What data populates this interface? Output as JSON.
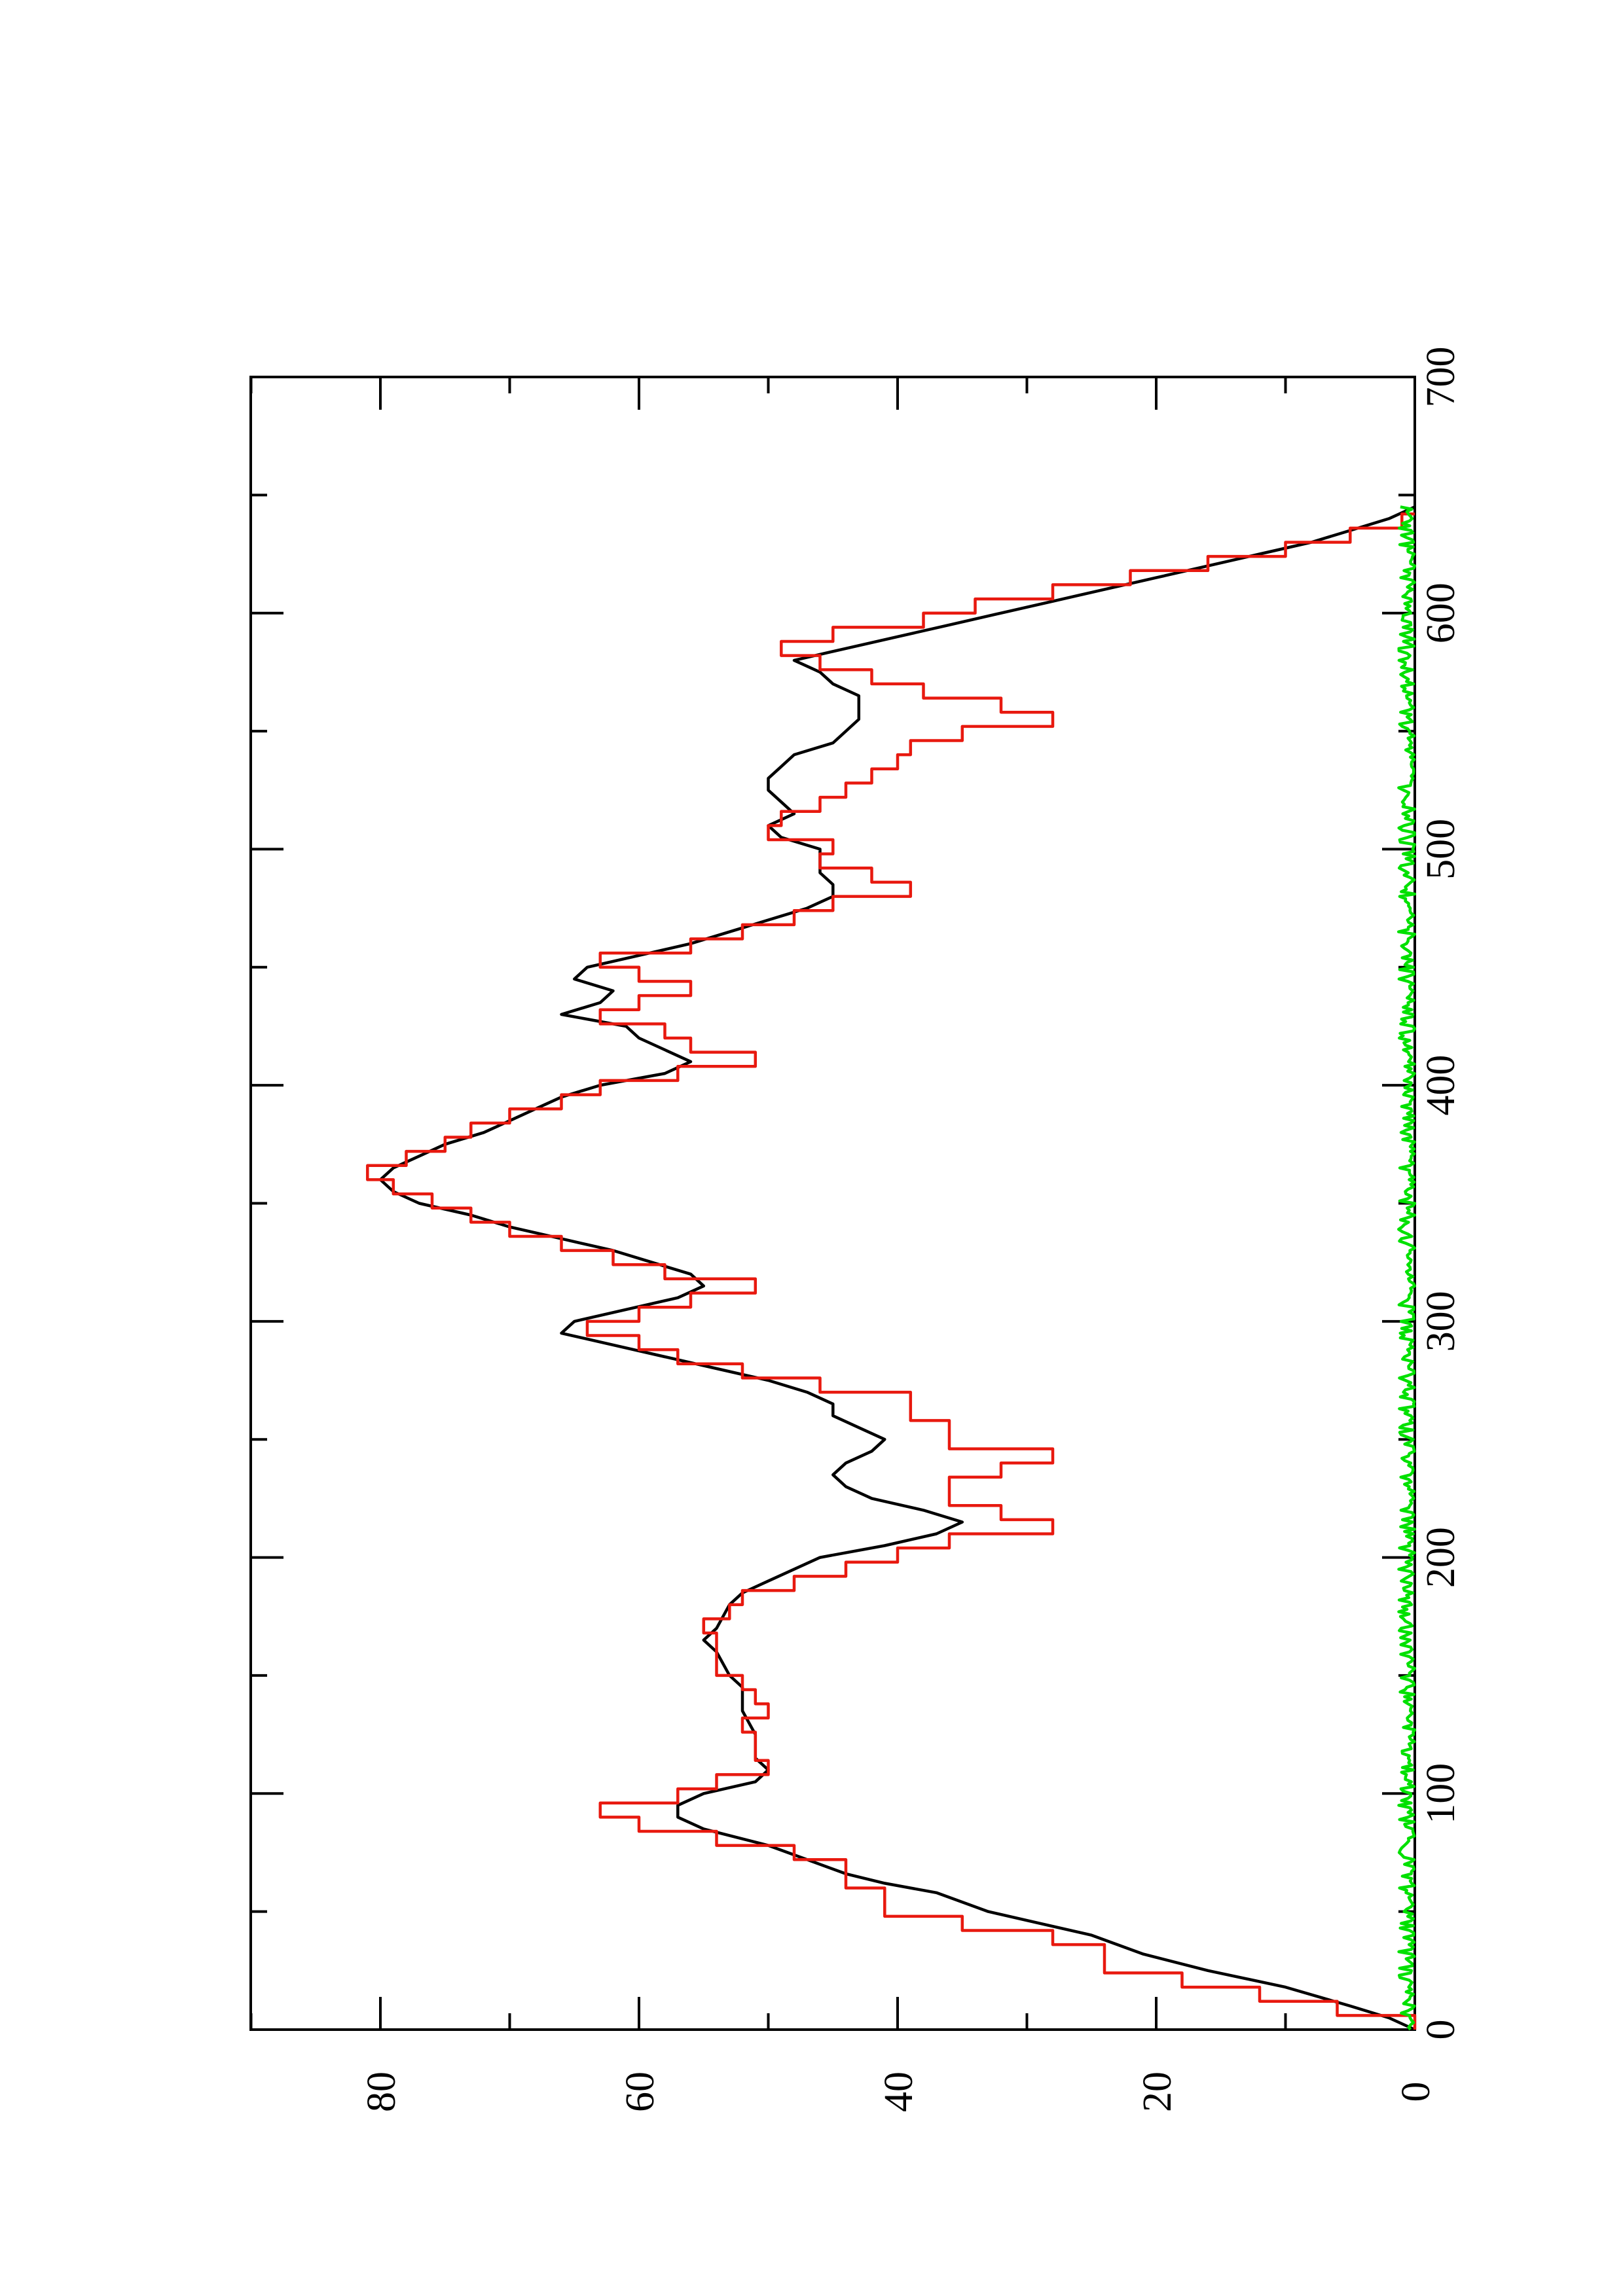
{
  "chart_data": {
    "type": "line",
    "orientation": "rotated-90-ccw",
    "xlim": [
      0,
      700
    ],
    "ylim": [
      0,
      90
    ],
    "x_ticks": [
      "0",
      "100",
      "200",
      "300",
      "400",
      "500",
      "600",
      "700"
    ],
    "y_ticks": [
      "0",
      "20",
      "40",
      "60",
      "80"
    ],
    "grid": false,
    "legend": "none",
    "series": [
      {
        "color": "#000000",
        "points": [
          [
            0,
            0
          ],
          [
            5,
            2
          ],
          [
            10,
            5
          ],
          [
            18,
            10
          ],
          [
            25,
            16
          ],
          [
            32,
            21
          ],
          [
            40,
            25
          ],
          [
            45,
            29
          ],
          [
            50,
            33
          ],
          [
            58,
            37
          ],
          [
            62,
            41
          ],
          [
            66,
            44
          ],
          [
            72,
            47
          ],
          [
            78,
            50
          ],
          [
            85,
            55
          ],
          [
            90,
            57
          ],
          [
            95,
            57
          ],
          [
            100,
            55
          ],
          [
            105,
            51
          ],
          [
            110,
            50
          ],
          [
            115,
            51
          ],
          [
            125,
            51
          ],
          [
            135,
            52
          ],
          [
            145,
            52
          ],
          [
            150,
            53
          ],
          [
            160,
            54
          ],
          [
            165,
            55
          ],
          [
            170,
            54
          ],
          [
            180,
            53
          ],
          [
            185,
            52
          ],
          [
            190,
            50
          ],
          [
            195,
            48
          ],
          [
            200,
            46
          ],
          [
            205,
            41
          ],
          [
            210,
            37
          ],
          [
            215,
            35
          ],
          [
            220,
            38
          ],
          [
            225,
            42
          ],
          [
            230,
            44
          ],
          [
            235,
            45
          ],
          [
            240,
            44
          ],
          [
            245,
            42
          ],
          [
            250,
            41
          ],
          [
            255,
            43
          ],
          [
            260,
            45
          ],
          [
            265,
            45
          ],
          [
            270,
            47
          ],
          [
            275,
            50
          ],
          [
            280,
            54
          ],
          [
            285,
            58
          ],
          [
            290,
            62
          ],
          [
            295,
            66
          ],
          [
            300,
            65
          ],
          [
            305,
            61
          ],
          [
            310,
            57
          ],
          [
            315,
            55
          ],
          [
            320,
            56
          ],
          [
            325,
            59
          ],
          [
            330,
            62
          ],
          [
            335,
            66
          ],
          [
            340,
            70
          ],
          [
            345,
            73
          ],
          [
            350,
            77
          ],
          [
            355,
            79
          ],
          [
            360,
            80
          ],
          [
            365,
            79
          ],
          [
            370,
            77
          ],
          [
            375,
            75
          ],
          [
            380,
            72
          ],
          [
            385,
            70
          ],
          [
            390,
            68
          ],
          [
            395,
            66
          ],
          [
            400,
            63
          ],
          [
            405,
            58
          ],
          [
            410,
            56
          ],
          [
            415,
            58
          ],
          [
            420,
            60
          ],
          [
            425,
            61
          ],
          [
            430,
            66
          ],
          [
            435,
            63
          ],
          [
            440,
            62
          ],
          [
            445,
            65
          ],
          [
            450,
            64
          ],
          [
            455,
            60
          ],
          [
            460,
            56
          ],
          [
            465,
            53
          ],
          [
            470,
            50
          ],
          [
            475,
            47
          ],
          [
            480,
            45
          ],
          [
            485,
            45
          ],
          [
            490,
            46
          ],
          [
            495,
            46
          ],
          [
            500,
            46
          ],
          [
            505,
            49
          ],
          [
            510,
            50
          ],
          [
            515,
            48
          ],
          [
            520,
            49
          ],
          [
            525,
            50
          ],
          [
            530,
            50
          ],
          [
            535,
            49
          ],
          [
            540,
            48
          ],
          [
            545,
            45
          ],
          [
            550,
            44
          ],
          [
            555,
            43
          ],
          [
            560,
            43
          ],
          [
            565,
            43
          ],
          [
            570,
            45
          ],
          [
            575,
            46
          ],
          [
            580,
            48
          ],
          [
            585,
            44
          ],
          [
            590,
            40
          ],
          [
            595,
            36
          ],
          [
            600,
            32
          ],
          [
            605,
            28
          ],
          [
            610,
            24
          ],
          [
            615,
            20
          ],
          [
            620,
            16
          ],
          [
            625,
            12
          ],
          [
            630,
            8
          ],
          [
            635,
            5
          ],
          [
            640,
            2
          ],
          [
            645,
            0
          ]
        ]
      },
      {
        "color": "#e8190f",
        "points": [
          [
            0,
            0
          ],
          [
            6,
            0
          ],
          [
            6,
            6
          ],
          [
            12,
            6
          ],
          [
            12,
            12
          ],
          [
            18,
            12
          ],
          [
            18,
            18
          ],
          [
            24,
            18
          ],
          [
            24,
            24
          ],
          [
            36,
            24
          ],
          [
            36,
            28
          ],
          [
            42,
            28
          ],
          [
            42,
            35
          ],
          [
            48,
            35
          ],
          [
            48,
            41
          ],
          [
            60,
            41
          ],
          [
            60,
            44
          ],
          [
            72,
            44
          ],
          [
            72,
            48
          ],
          [
            78,
            48
          ],
          [
            78,
            54
          ],
          [
            84,
            54
          ],
          [
            84,
            60
          ],
          [
            90,
            60
          ],
          [
            90,
            63
          ],
          [
            96,
            63
          ],
          [
            96,
            57
          ],
          [
            102,
            57
          ],
          [
            102,
            54
          ],
          [
            108,
            54
          ],
          [
            108,
            50
          ],
          [
            114,
            50
          ],
          [
            114,
            51
          ],
          [
            126,
            51
          ],
          [
            126,
            52
          ],
          [
            132,
            52
          ],
          [
            132,
            50
          ],
          [
            138,
            50
          ],
          [
            138,
            51
          ],
          [
            144,
            51
          ],
          [
            144,
            52
          ],
          [
            150,
            52
          ],
          [
            150,
            54
          ],
          [
            168,
            54
          ],
          [
            168,
            55
          ],
          [
            174,
            55
          ],
          [
            174,
            53
          ],
          [
            180,
            53
          ],
          [
            180,
            52
          ],
          [
            186,
            52
          ],
          [
            186,
            48
          ],
          [
            192,
            48
          ],
          [
            192,
            44
          ],
          [
            198,
            44
          ],
          [
            198,
            40
          ],
          [
            204,
            40
          ],
          [
            204,
            36
          ],
          [
            210,
            36
          ],
          [
            210,
            28
          ],
          [
            216,
            28
          ],
          [
            216,
            32
          ],
          [
            222,
            32
          ],
          [
            222,
            36
          ],
          [
            234,
            36
          ],
          [
            234,
            32
          ],
          [
            240,
            32
          ],
          [
            240,
            28
          ],
          [
            246,
            28
          ],
          [
            246,
            36
          ],
          [
            258,
            36
          ],
          [
            258,
            39
          ],
          [
            270,
            39
          ],
          [
            270,
            46
          ],
          [
            276,
            46
          ],
          [
            276,
            52
          ],
          [
            282,
            52
          ],
          [
            282,
            57
          ],
          [
            288,
            57
          ],
          [
            288,
            60
          ],
          [
            294,
            60
          ],
          [
            294,
            64
          ],
          [
            300,
            64
          ],
          [
            300,
            60
          ],
          [
            306,
            60
          ],
          [
            306,
            56
          ],
          [
            312,
            56
          ],
          [
            312,
            51
          ],
          [
            318,
            51
          ],
          [
            318,
            58
          ],
          [
            324,
            58
          ],
          [
            324,
            62
          ],
          [
            330,
            62
          ],
          [
            330,
            66
          ],
          [
            336,
            66
          ],
          [
            336,
            70
          ],
          [
            342,
            70
          ],
          [
            342,
            73
          ],
          [
            348,
            73
          ],
          [
            348,
            76
          ],
          [
            354,
            76
          ],
          [
            354,
            79
          ],
          [
            360,
            79
          ],
          [
            360,
            81
          ],
          [
            366,
            81
          ],
          [
            366,
            78
          ],
          [
            372,
            78
          ],
          [
            372,
            75
          ],
          [
            378,
            75
          ],
          [
            378,
            73
          ],
          [
            384,
            73
          ],
          [
            384,
            70
          ],
          [
            390,
            70
          ],
          [
            390,
            66
          ],
          [
            396,
            66
          ],
          [
            396,
            63
          ],
          [
            402,
            63
          ],
          [
            402,
            57
          ],
          [
            408,
            57
          ],
          [
            408,
            51
          ],
          [
            414,
            51
          ],
          [
            414,
            56
          ],
          [
            420,
            56
          ],
          [
            420,
            58
          ],
          [
            426,
            58
          ],
          [
            426,
            63
          ],
          [
            432,
            63
          ],
          [
            432,
            60
          ],
          [
            438,
            60
          ],
          [
            438,
            56
          ],
          [
            444,
            56
          ],
          [
            444,
            60
          ],
          [
            450,
            60
          ],
          [
            450,
            63
          ],
          [
            456,
            63
          ],
          [
            456,
            56
          ],
          [
            462,
            56
          ],
          [
            462,
            52
          ],
          [
            468,
            52
          ],
          [
            468,
            48
          ],
          [
            474,
            48
          ],
          [
            474,
            45
          ],
          [
            480,
            45
          ],
          [
            480,
            39
          ],
          [
            486,
            39
          ],
          [
            486,
            42
          ],
          [
            492,
            42
          ],
          [
            492,
            46
          ],
          [
            498,
            46
          ],
          [
            498,
            45
          ],
          [
            504,
            45
          ],
          [
            504,
            50
          ],
          [
            510,
            50
          ],
          [
            510,
            49
          ],
          [
            516,
            49
          ],
          [
            516,
            46
          ],
          [
            522,
            46
          ],
          [
            522,
            44
          ],
          [
            528,
            44
          ],
          [
            528,
            42
          ],
          [
            534,
            42
          ],
          [
            534,
            40
          ],
          [
            540,
            40
          ],
          [
            540,
            39
          ],
          [
            546,
            39
          ],
          [
            546,
            35
          ],
          [
            552,
            35
          ],
          [
            552,
            28
          ],
          [
            558,
            28
          ],
          [
            558,
            32
          ],
          [
            564,
            32
          ],
          [
            564,
            38
          ],
          [
            570,
            38
          ],
          [
            570,
            42
          ],
          [
            576,
            42
          ],
          [
            576,
            46
          ],
          [
            582,
            46
          ],
          [
            582,
            49
          ],
          [
            588,
            49
          ],
          [
            588,
            45
          ],
          [
            594,
            45
          ],
          [
            594,
            38
          ],
          [
            600,
            38
          ],
          [
            600,
            34
          ],
          [
            606,
            34
          ],
          [
            606,
            28
          ],
          [
            612,
            28
          ],
          [
            612,
            22
          ],
          [
            618,
            22
          ],
          [
            618,
            16
          ],
          [
            624,
            16
          ],
          [
            624,
            10
          ],
          [
            630,
            10
          ],
          [
            630,
            5
          ],
          [
            636,
            5
          ],
          [
            636,
            1
          ],
          [
            642,
            1
          ],
          [
            642,
            0
          ]
        ]
      },
      {
        "color": "#00e000",
        "noise_amplitude": 1.2,
        "x_range": [
          0,
          645
        ]
      }
    ]
  }
}
